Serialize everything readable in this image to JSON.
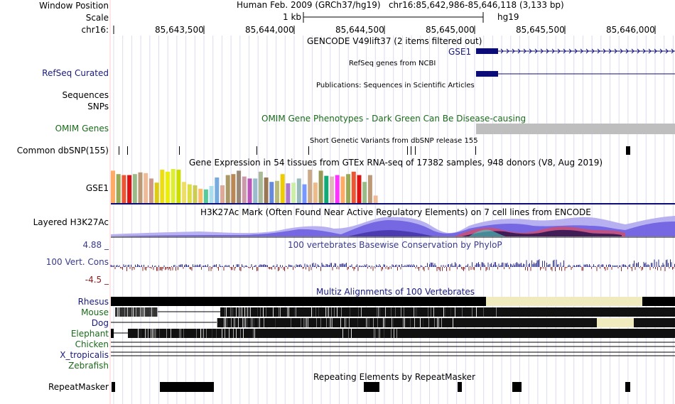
{
  "header": {
    "window_position_label": "Window Position",
    "scale_label": "Scale",
    "chrom_label": "chr16:",
    "title": "Human Feb. 2009 (GRCh37/hg19)   chr16:85,642,986-85,646,118 (3,133 bp)",
    "scale_text": "1 kb",
    "assembly": "hg19",
    "ticks": [
      "85,643,500",
      "85,644,000",
      "85,644,500",
      "85,645,000",
      "85,645,500",
      "85,646,000"
    ]
  },
  "tracks": {
    "gencode_title": "GENCODE V49lift37 (2 items filtered out)",
    "gse1_gene_label": "GSE1",
    "refseq_label": "RefSeq Curated",
    "refseq_title": "RefSeq genes from NCBI",
    "publications_title": "Publications: Sequences in Scientific Articles",
    "sequences_label": "Sequences",
    "snps_label": "SNPs",
    "omim_title": "OMIM Gene Phenotypes - Dark Green Can Be Disease-causing",
    "omim_label": "OMIM Genes",
    "dbsnp_title": "Short Genetic Variants from dbSNP release 155",
    "dbsnp_label": "Common dbSNP(155)",
    "gtex_title": "Gene Expression in 54 tissues from GTEx RNA-seq of 17382 samples, 948 donors (V8, Aug 2019)",
    "gtex_label": "GSE1",
    "h3k27_title": "H3K27Ac Mark (Often Found Near Active Regulatory Elements) on 7 cell lines from ENCODE",
    "h3k27_label": "Layered H3K27Ac",
    "cons_max": "4.88 _",
    "cons_label": "100 Vert. Cons",
    "cons_min": "-4.5 _",
    "cons_title": "100 vertebrates Basewise Conservation by PhyloP",
    "multiz_title": "Multiz Alignments of 100 Vertebrates",
    "species": [
      "Rhesus",
      "Mouse",
      "Dog",
      "Elephant",
      "Chicken",
      "X_tropicalis",
      "Zebrafish"
    ],
    "rmsk_title": "Repeating Elements by RepeatMasker",
    "rmsk_label": "RepeatMasker"
  },
  "colors": {
    "gene_blue": "#0c0c78",
    "omim_gray": "#bebebe",
    "grid": "#dcdcf0",
    "guide": "#ffcccc",
    "gap_beige": "#f0ebbe"
  },
  "gtex_colors": [
    "#ffaa66",
    "#99aa55",
    "#ee5533",
    "#dd1111",
    "#99bb88",
    "#bb9977",
    "#eebb99",
    "#cc9988",
    "#ddcc11",
    "#eedd11",
    "#eeee00",
    "#ddee33",
    "#ccdd00",
    "#eedd66",
    "#dddd44",
    "#cccc55",
    "#ffbb66",
    "#55cc99",
    "#aaddee",
    "#77aadd",
    "#ddaa99",
    "#aa9966",
    "#bb8855",
    "#998877",
    "#cc99aa",
    "#bb55bb",
    "#99bbcc",
    "#aabb99",
    "#997755",
    "#6688dd",
    "#bbbb77",
    "#eecc00",
    "#aa77cc",
    "#cceeaa",
    "#99bbbb",
    "#7799ff",
    "#ccaa88",
    "#eebb88",
    "#999955",
    "#11aa77",
    "#ddbbbb",
    "#ff33ff"
  ],
  "gtex_values": [
    0.95,
    0.85,
    0.82,
    0.82,
    0.85,
    0.9,
    0.88,
    0.72,
    0.6,
    0.98,
    0.92,
    1.0,
    0.98,
    0.62,
    0.55,
    0.52,
    0.42,
    0.4,
    0.5,
    0.75,
    0.52,
    0.82,
    0.85,
    0.95,
    0.78,
    0.72,
    0.72,
    0.92,
    0.75,
    0.62,
    0.65,
    0.85,
    0.58,
    0.6,
    0.72,
    0.55,
    0.98,
    0.6,
    0.95,
    0.8,
    0.78,
    0.82,
    0.78,
    0.85,
    0.92,
    0.82,
    0.62,
    0.82,
    0.22
  ],
  "dbsnp_positions": [
    167,
    179,
    252,
    361,
    434,
    573,
    578,
    584,
    669,
    881,
    884
  ],
  "rmsk_blocks": [
    [
      157,
      162
    ],
    [
      225,
      301
    ],
    [
      512,
      534
    ],
    [
      644,
      650
    ],
    [
      721,
      734
    ],
    [
      880,
      887
    ]
  ]
}
